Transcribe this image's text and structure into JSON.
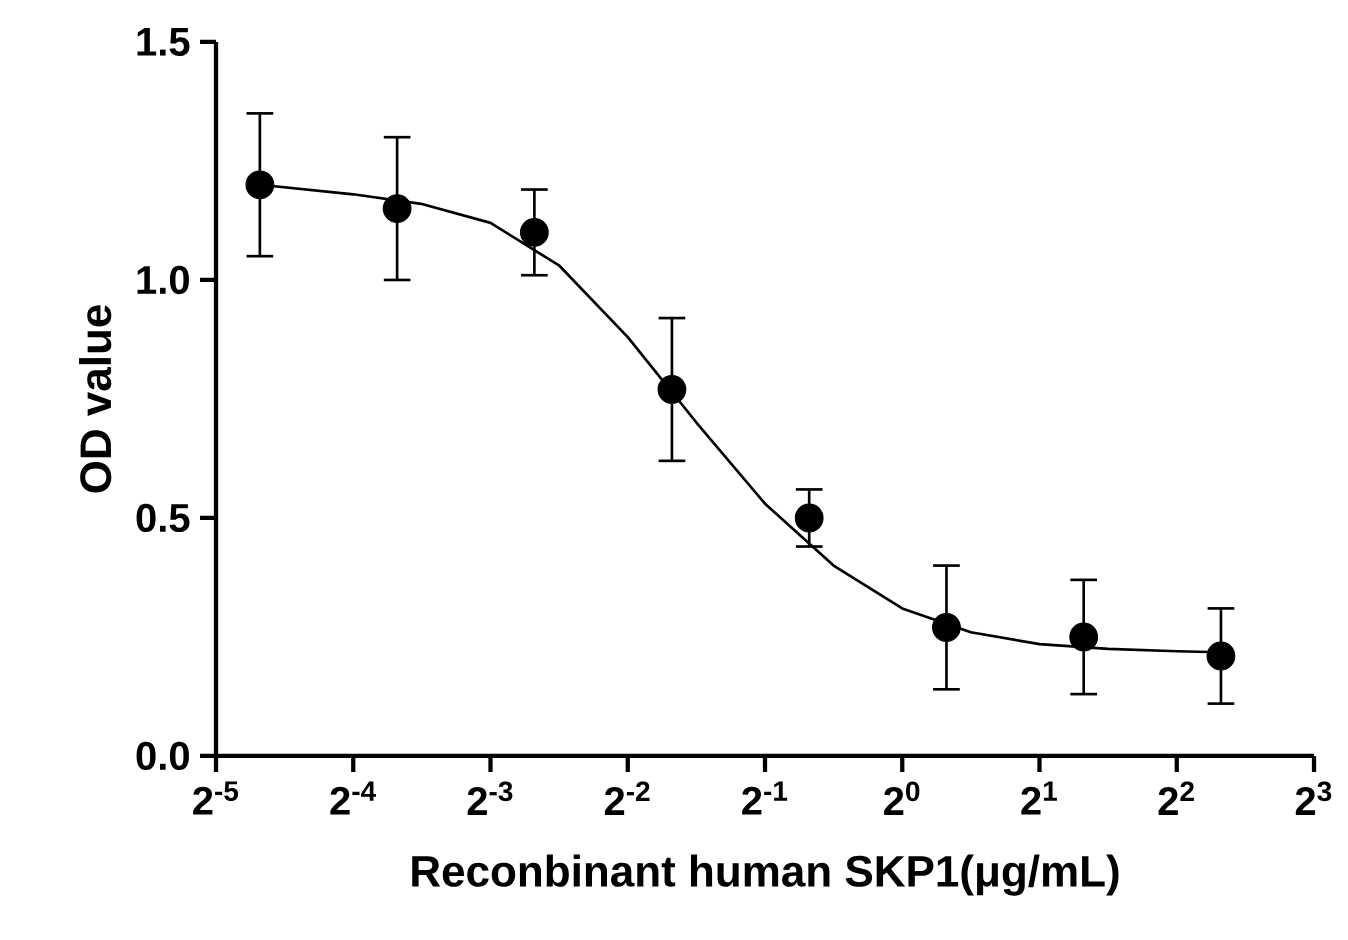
{
  "chart_data": {
    "type": "scatter",
    "xlabel": "Reconbinant human SKP1(μg/mL)",
    "ylabel": "OD value",
    "log": "x",
    "grid": false,
    "xlim": [
      0.03125,
      8
    ],
    "ylim": [
      0,
      1.5
    ],
    "xticks": [
      {
        "value": 0.03125,
        "label": "2$^{-5}$"
      },
      {
        "value": 0.0625,
        "label": "2$^{-4}$"
      },
      {
        "value": 0.125,
        "label": "2$^{-3}$"
      },
      {
        "value": 0.25,
        "label": "2$^{-2}$"
      },
      {
        "value": 0.5,
        "label": "2$^{-1}$"
      },
      {
        "value": 1,
        "label": "2$^{0}$"
      },
      {
        "value": 2,
        "label": "2$^{1}$"
      },
      {
        "value": 4,
        "label": "2$^{2}$"
      },
      {
        "value": 8,
        "label": "2$^{3}$"
      }
    ],
    "yticks": [
      {
        "value": 0,
        "label": "0.0"
      },
      0.5,
      {
        "value": 1,
        "label": "1.0"
      },
      1.5
    ],
    "series": [
      {
        "color": "#000000",
        "marker": "circle",
        "x": [
          0.039,
          0.078,
          0.156,
          0.3125,
          0.625,
          1.25,
          2.5,
          5
        ],
        "values": [
          1.2,
          1.15,
          1.1,
          0.77,
          0.5,
          0.27,
          0.25,
          0.21
        ],
        "errors": [
          0.15,
          0.15,
          0.09,
          0.15,
          0.06,
          0.13,
          0.12,
          0.1
        ]
      },
      {
        "type": "line",
        "color": "#000000",
        "marker": "none",
        "x": [
          0.039,
          0.0625,
          0.088,
          0.125,
          0.177,
          0.25,
          0.354,
          0.5,
          0.707,
          1,
          1.414,
          2,
          2.83,
          4,
          5
        ],
        "values": [
          1.2,
          1.18,
          1.16,
          1.12,
          1.03,
          0.88,
          0.7,
          0.53,
          0.4,
          0.31,
          0.26,
          0.235,
          0.225,
          0.22,
          0.218
        ]
      }
    ]
  }
}
